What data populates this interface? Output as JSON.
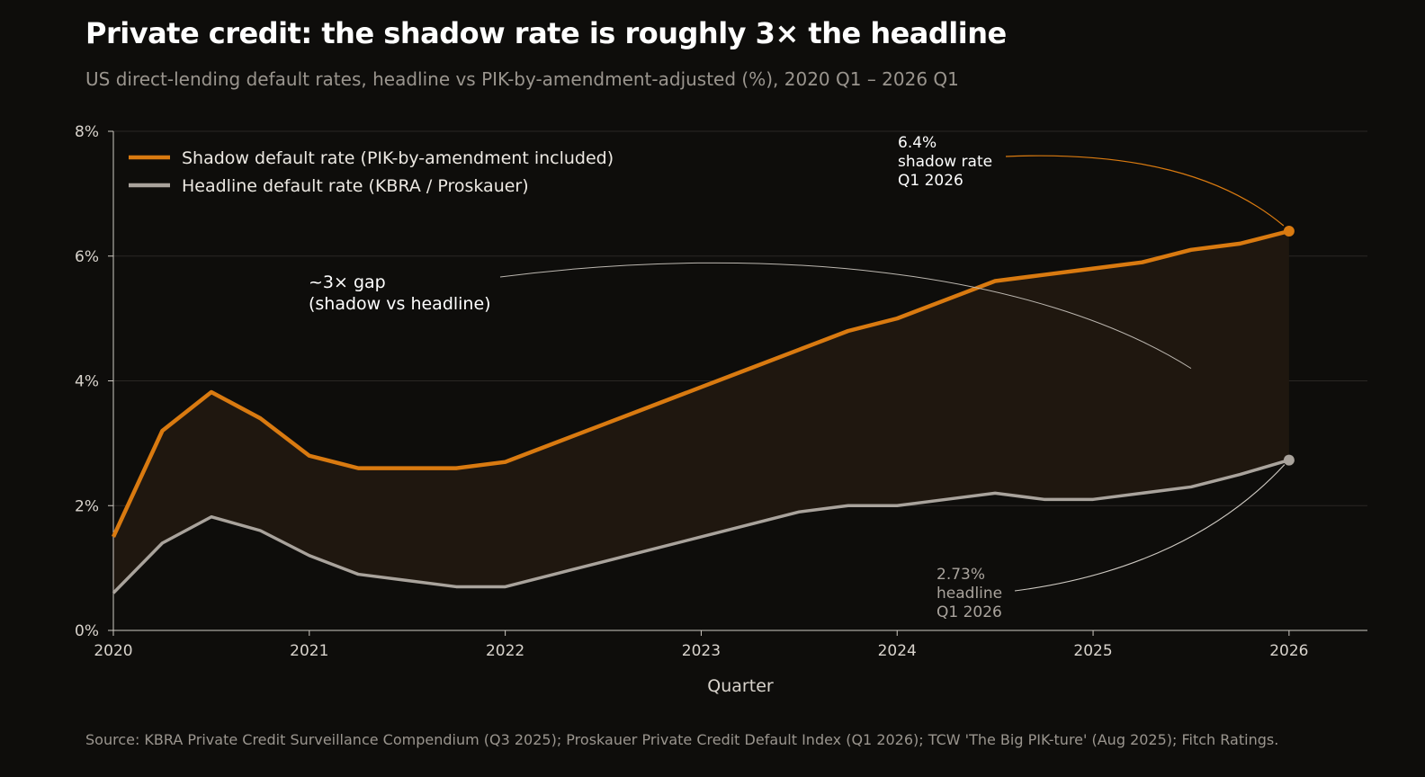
{
  "title": "Private credit: the shadow rate is roughly 3× the headline",
  "subtitle": "US direct-lending default rates, headline vs PIK-by-amendment-adjusted (%), 2020 Q1 – 2026 Q1",
  "source": "Source: KBRA Private Credit Surveillance Compendium (Q3 2025); Proskauer Private Credit Default Index (Q1 2026); TCW 'The Big PIK-ture' (Aug 2025); Fitch Ratings.",
  "colors": {
    "shadow": "#d97a10",
    "headline": "#a9a39c",
    "band": "#1f170f",
    "grid": "#2a2724",
    "axis": "#cfcac3"
  },
  "chart_data": {
    "type": "line",
    "xlabel": "Quarter",
    "ylabel": "",
    "xlim": [
      2020,
      2026.4
    ],
    "ylim": [
      0,
      8
    ],
    "x_ticks": [
      2020,
      2021,
      2022,
      2023,
      2024,
      2025,
      2026
    ],
    "x_tick_labels": [
      "2020",
      "2021",
      "2022",
      "2023",
      "2024",
      "2025",
      "2026"
    ],
    "y_ticks": [
      0,
      2,
      4,
      6,
      8
    ],
    "y_tick_labels": [
      "0%",
      "2%",
      "4%",
      "6%",
      "8%"
    ],
    "grid": true,
    "legend_position": "top-left",
    "x": [
      2020.0,
      2020.25,
      2020.5,
      2020.75,
      2021.0,
      2021.25,
      2021.5,
      2021.75,
      2022.0,
      2022.25,
      2022.5,
      2022.75,
      2023.0,
      2023.25,
      2023.5,
      2023.75,
      2024.0,
      2024.25,
      2024.5,
      2024.75,
      2025.0,
      2025.25,
      2025.5,
      2025.75,
      2026.0
    ],
    "series": [
      {
        "name": "Shadow default rate (PIK-by-amendment included)",
        "values": [
          1.5,
          3.2,
          3.82,
          3.4,
          2.8,
          2.6,
          2.6,
          2.6,
          2.7,
          3.0,
          3.3,
          3.6,
          3.9,
          4.2,
          4.5,
          4.8,
          5.0,
          5.3,
          5.6,
          5.7,
          5.8,
          5.9,
          6.1,
          6.2,
          6.4
        ]
      },
      {
        "name": "Headline default rate (KBRA / Proskauer)",
        "values": [
          0.6,
          1.4,
          1.82,
          1.6,
          1.2,
          0.9,
          0.8,
          0.7,
          0.7,
          0.9,
          1.1,
          1.3,
          1.5,
          1.7,
          1.9,
          2.0,
          2.0,
          2.1,
          2.2,
          2.1,
          2.1,
          2.2,
          2.3,
          2.5,
          2.73
        ]
      }
    ],
    "annotations": [
      {
        "lines": [
          "6.4%",
          "shadow rate",
          "Q1 2026"
        ],
        "x": 2026.0,
        "y": 6.4
      },
      {
        "lines": [
          "2.73%",
          "headline",
          "Q1 2026"
        ],
        "x": 2026.0,
        "y": 2.73
      },
      {
        "lines": [
          "~3× gap",
          "(shadow vs headline)"
        ],
        "x": 2025.5,
        "y": 4.2
      }
    ]
  }
}
